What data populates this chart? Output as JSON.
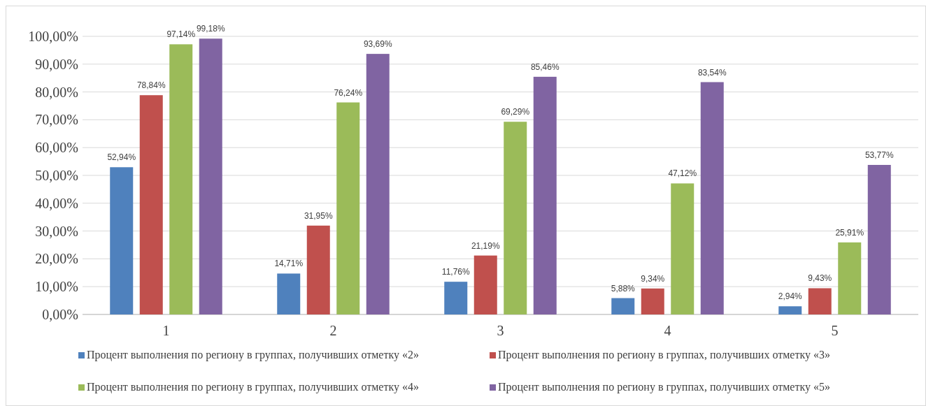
{
  "chart_data": {
    "type": "bar",
    "categories": [
      "1",
      "2",
      "3",
      "4",
      "5"
    ],
    "series": [
      {
        "name": "Процент выполнения по региону в группах, получивших отметку «2»",
        "color": "#4f81bd",
        "values": [
          52.94,
          14.71,
          11.76,
          5.88,
          2.94
        ],
        "value_labels": [
          "52,94%",
          "14,71%",
          "11,76%",
          "5,88%",
          "2,94%"
        ]
      },
      {
        "name": "Процент выполнения по региону в группах, получивших отметку «3»",
        "color": "#c0504d",
        "values": [
          78.84,
          31.95,
          21.19,
          9.34,
          9.43
        ],
        "value_labels": [
          "78,84%",
          "31,95%",
          "21,19%",
          "9,34%",
          "9,43%"
        ]
      },
      {
        "name": "Процент выполнения по региону в группах, получивших отметку «4»",
        "color": "#9bbb59",
        "values": [
          97.14,
          76.24,
          69.29,
          47.12,
          25.91
        ],
        "value_labels": [
          "97,14%",
          "76,24%",
          "69,29%",
          "47,12%",
          "25,91%"
        ]
      },
      {
        "name": "Процент выполнения по региону в группах, получивших отметку «5»",
        "color": "#8064a2",
        "values": [
          99.18,
          93.69,
          85.46,
          83.54,
          53.77
        ],
        "value_labels": [
          "99,18%",
          "93,69%",
          "85,46%",
          "83,54%",
          "53,77%"
        ]
      }
    ],
    "ylim": [
      0,
      100
    ],
    "yticks": [
      {
        "value": 0,
        "label": "0,00%"
      },
      {
        "value": 10,
        "label": "10,00%"
      },
      {
        "value": 20,
        "label": "20,00%"
      },
      {
        "value": 30,
        "label": "30,00%"
      },
      {
        "value": 40,
        "label": "40,00%"
      },
      {
        "value": 50,
        "label": "50,00%"
      },
      {
        "value": 60,
        "label": "60,00%"
      },
      {
        "value": 70,
        "label": "70,00%"
      },
      {
        "value": 80,
        "label": "80,00%"
      },
      {
        "value": 90,
        "label": "90,00%"
      },
      {
        "value": 100,
        "label": "100,00%"
      }
    ],
    "grid": "y",
    "legend": "bottom"
  }
}
